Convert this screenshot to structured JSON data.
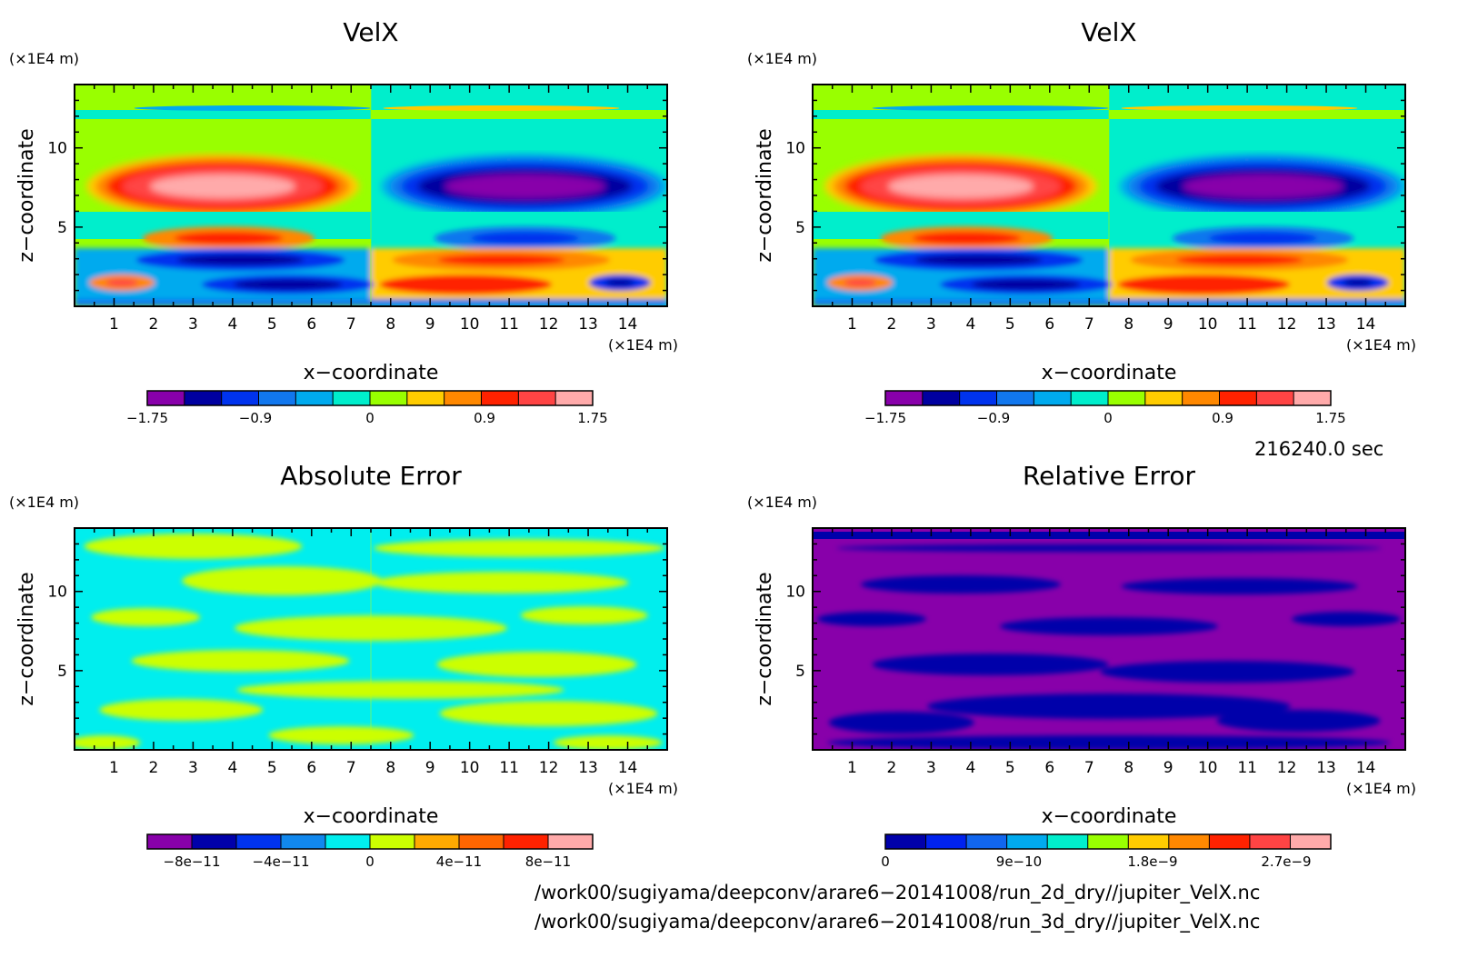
{
  "chart_data": [
    {
      "type": "heatmap",
      "title": "VelX",
      "xlabel": "x−coordinate",
      "ylabel": "z−coordinate",
      "x_unit": "(×1E4 m)",
      "y_unit": "(×1E4 m)",
      "xlim": [
        0,
        15
      ],
      "ylim": [
        0,
        14
      ],
      "x_ticks": [
        1,
        2,
        3,
        4,
        5,
        6,
        7,
        8,
        9,
        10,
        11,
        12,
        13,
        14
      ],
      "y_ticks": [
        5,
        10
      ],
      "colorbar": {
        "levels": [
          -1.75,
          -1.4,
          -1.05,
          -0.7,
          -0.35,
          0,
          0.35,
          0.7,
          1.05,
          1.4,
          1.75
        ],
        "tick_labels": [
          "−1.75",
          "−0.9",
          "0",
          "0.9",
          "1.75"
        ],
        "tick_values": [
          -1.75,
          -0.9,
          0,
          0.9,
          1.75
        ],
        "colors": [
          "#8800aa",
          "#0000a0",
          "#0033ee",
          "#1177ee",
          "#00aaee",
          "#00eecc",
          "#99ff00",
          "#ffcc00",
          "#ff8800",
          "#ff2200",
          "#ff4444",
          "#ffaaaa"
        ]
      }
    },
    {
      "type": "heatmap",
      "title": "VelX",
      "xlabel": "x−coordinate",
      "ylabel": "z−coordinate",
      "x_unit": "(×1E4 m)",
      "y_unit": "(×1E4 m)",
      "xlim": [
        0,
        15
      ],
      "ylim": [
        0,
        14
      ],
      "x_ticks": [
        1,
        2,
        3,
        4,
        5,
        6,
        7,
        8,
        9,
        10,
        11,
        12,
        13,
        14
      ],
      "y_ticks": [
        5,
        10
      ],
      "colorbar": {
        "levels": [
          -1.75,
          -1.4,
          -1.05,
          -0.7,
          -0.35,
          0,
          0.35,
          0.7,
          1.05,
          1.4,
          1.75
        ],
        "tick_labels": [
          "−1.75",
          "−0.9",
          "0",
          "0.9",
          "1.75"
        ],
        "tick_values": [
          -1.75,
          -0.9,
          0,
          0.9,
          1.75
        ],
        "colors": [
          "#8800aa",
          "#0000a0",
          "#0033ee",
          "#1177ee",
          "#00aaee",
          "#00eecc",
          "#99ff00",
          "#ffcc00",
          "#ff8800",
          "#ff2200",
          "#ff4444",
          "#ffaaaa"
        ]
      }
    },
    {
      "type": "heatmap",
      "title": "Absolute Error",
      "xlabel": "x−coordinate",
      "ylabel": "z−coordinate",
      "x_unit": "(×1E4 m)",
      "y_unit": "(×1E4 m)",
      "xlim": [
        0,
        15
      ],
      "ylim": [
        0,
        14
      ],
      "x_ticks": [
        1,
        2,
        3,
        4,
        5,
        6,
        7,
        8,
        9,
        10,
        11,
        12,
        13,
        14
      ],
      "y_ticks": [
        5,
        10
      ],
      "colorbar": {
        "levels": [
          -1e-10,
          -8e-11,
          -6e-11,
          -4e-11,
          -2e-11,
          0,
          2e-11,
          4e-11,
          6e-11,
          8e-11,
          1e-10
        ],
        "tick_labels": [
          "−8e−11",
          "−4e−11",
          "0",
          "4e−11",
          "8e−11"
        ],
        "tick_values": [
          -8e-11,
          -4e-11,
          0,
          4e-11,
          8e-11
        ],
        "colors": [
          "#8800aa",
          "#0000aa",
          "#0033ee",
          "#1188ee",
          "#00eeee",
          "#ccff00",
          "#ffaa00",
          "#ff6600",
          "#ff2200",
          "#ffaaaa"
        ]
      }
    },
    {
      "type": "heatmap",
      "title": "Relative Error",
      "xlabel": "x−coordinate",
      "ylabel": "z−coordinate",
      "x_unit": "(×1E4 m)",
      "y_unit": "(×1E4 m)",
      "xlim": [
        0,
        15
      ],
      "ylim": [
        0,
        14
      ],
      "x_ticks": [
        1,
        2,
        3,
        4,
        5,
        6,
        7,
        8,
        9,
        10,
        11,
        12,
        13,
        14
      ],
      "y_ticks": [
        5,
        10
      ],
      "colorbar": {
        "levels": [
          0,
          3e-10,
          6e-10,
          9e-10,
          1.2e-09,
          1.5e-09,
          1.8e-09,
          2.1e-09,
          2.4e-09,
          2.7e-09,
          3e-09
        ],
        "tick_labels": [
          "0",
          "9e−10",
          "1.8e−9",
          "2.7e−9"
        ],
        "tick_values": [
          0,
          9e-10,
          1.8e-09,
          2.7e-09
        ],
        "colors": [
          "#0000aa",
          "#0022ee",
          "#1166ee",
          "#00aaee",
          "#00eecc",
          "#99ff00",
          "#ffcc00",
          "#ff8800",
          "#ff2200",
          "#ff4444",
          "#ffaaaa"
        ]
      }
    }
  ],
  "time_label": "216240.0 sec",
  "file_paths": [
    "/work00/sugiyama/deepconv/arare6−20141008/run_2d_dry//jupiter_VelX.nc",
    "/work00/sugiyama/deepconv/arare6−20141008/run_3d_dry//jupiter_VelX.nc"
  ]
}
